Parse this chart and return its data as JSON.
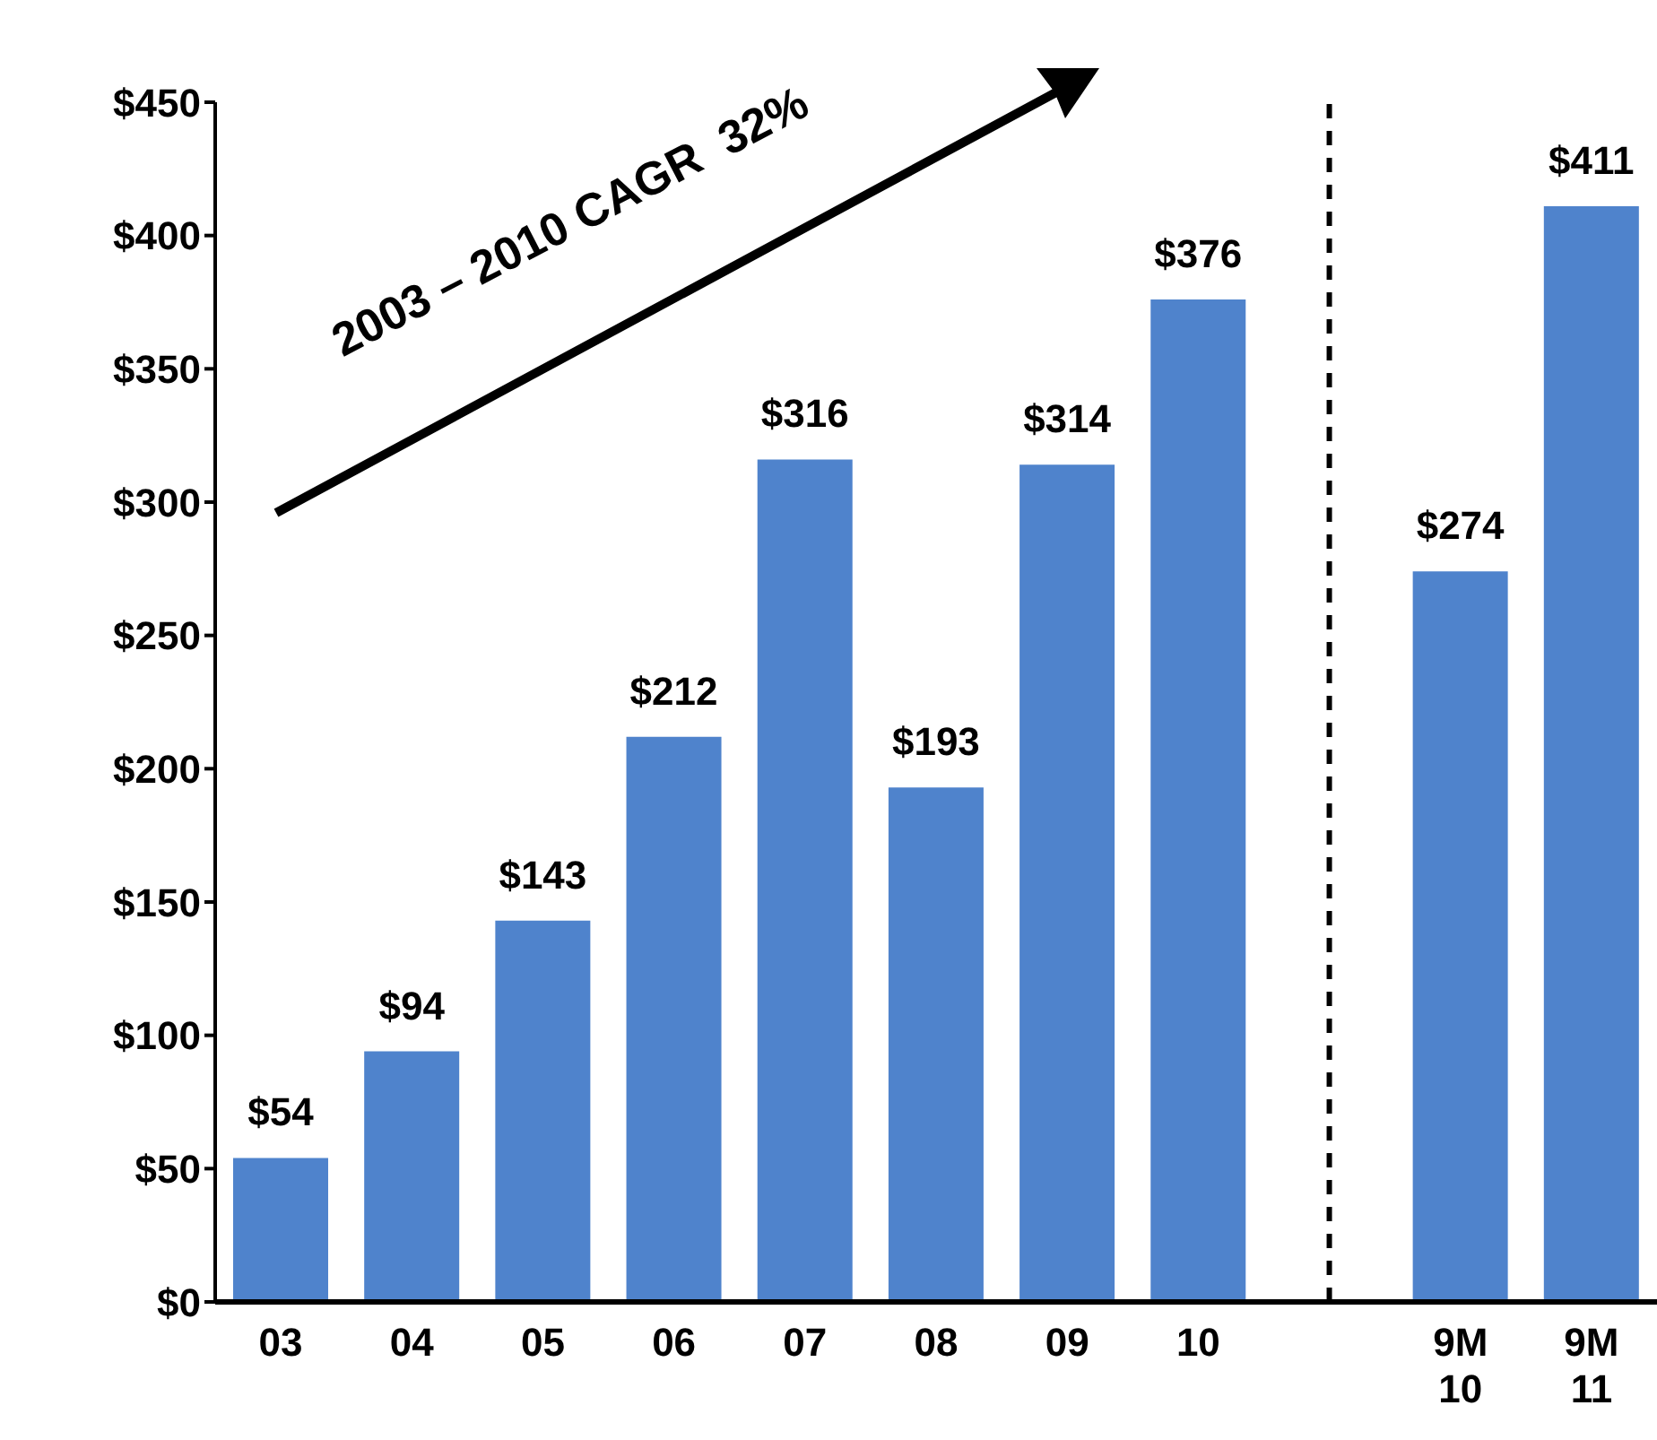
{
  "chart_data": {
    "type": "bar",
    "categories": [
      "03",
      "04",
      "05",
      "06",
      "07",
      "08",
      "09",
      "10",
      null,
      "9M 10",
      "9M 11"
    ],
    "values": [
      54,
      94,
      143,
      212,
      316,
      193,
      314,
      376,
      null,
      274,
      411
    ],
    "value_labels": [
      "$54",
      "$94",
      "$143",
      "$212",
      "$316",
      "$193",
      "$314",
      "$376",
      null,
      "$274",
      "$411"
    ],
    "color": "#4f83cc",
    "ylim": [
      0,
      450
    ],
    "yticks": [
      {
        "value": 0,
        "label": "$0"
      },
      {
        "value": 50,
        "label": "$50"
      },
      {
        "value": 100,
        "label": "$100"
      },
      {
        "value": 150,
        "label": "$150"
      },
      {
        "value": 200,
        "label": "$200"
      },
      {
        "value": 250,
        "label": "$250"
      },
      {
        "value": 300,
        "label": "$300"
      },
      {
        "value": 350,
        "label": "$350"
      },
      {
        "value": 400,
        "label": "$400"
      },
      {
        "value": 450,
        "label": "$450"
      }
    ],
    "ref_lines": [
      {
        "axis": "x",
        "color": "#000000",
        "line_style": "dashed"
      }
    ],
    "annotations": [
      "2003 – 2010 CAGR  32%"
    ],
    "legend": false
  }
}
